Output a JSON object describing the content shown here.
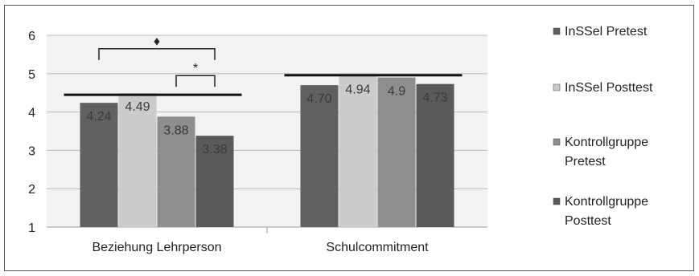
{
  "chart_data": {
    "type": "bar",
    "categories": [
      "Beziehung Lehrperson",
      "Schulcommitment"
    ],
    "series": [
      {
        "name": "InSSel Pretest",
        "values": [
          4.24,
          4.7
        ],
        "labels": [
          "4.24",
          "4.70"
        ],
        "color": "#606060"
      },
      {
        "name": "InSSel Posttest",
        "values": [
          4.49,
          4.94
        ],
        "labels": [
          "4.49",
          "4.94"
        ],
        "color": "#cbcbcb"
      },
      {
        "name": "Kontrollgruppe Pretest",
        "values": [
          3.88,
          4.9
        ],
        "labels": [
          "3.88",
          "4.9"
        ],
        "color": "#8e8e8e"
      },
      {
        "name": "Kontrollgruppe Posttest",
        "values": [
          3.38,
          4.73
        ],
        "labels": [
          "3.38",
          "4.73"
        ],
        "color": "#5a5a5a"
      }
    ],
    "legend_lines": [
      [
        "InSSel Pretest"
      ],
      [
        "InSSel Posttest"
      ],
      [
        "Kontrollgruppe",
        "Pretest"
      ],
      [
        "Kontrollgruppe",
        "Posttest"
      ]
    ],
    "yticks": [
      "1",
      "2",
      "3",
      "4",
      "5",
      "6"
    ],
    "ylim": [
      1,
      6
    ],
    "grid": true,
    "legend_position": "right",
    "reference_lines": [
      4.45,
      4.96
    ],
    "annotations": [
      {
        "symbol": "♦",
        "between": [
          "InSSel Pretest",
          "Kontrollgruppe Posttest"
        ],
        "category": "Beziehung Lehrperson",
        "level": 5.65
      },
      {
        "symbol": "*",
        "between": [
          "Kontrollgruppe Pretest",
          "Kontrollgruppe Posttest"
        ],
        "category": "Beziehung Lehrperson",
        "level": 4.95
      }
    ],
    "title": "",
    "xlabel": "",
    "ylabel": ""
  }
}
